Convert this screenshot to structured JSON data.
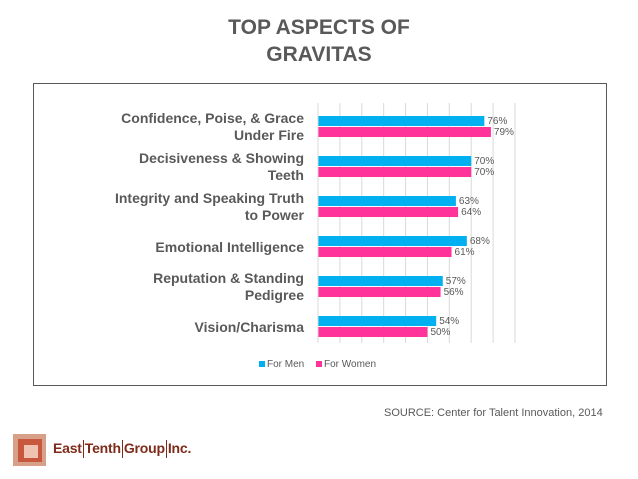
{
  "title_line1": "TOP ASPECTS OF",
  "title_line2": "GRAVITAS",
  "chart_data": {
    "type": "bar",
    "orientation": "horizontal",
    "categories": [
      [
        "Confidence, Poise, & Grace",
        "Under Fire"
      ],
      [
        "Decisiveness & Showing",
        "Teeth"
      ],
      [
        "Integrity and Speaking Truth",
        "to Power"
      ],
      [
        "Emotional Intelligence"
      ],
      [
        "Reputation & Standing",
        "Pedigree"
      ],
      [
        "Vision/Charisma"
      ]
    ],
    "series": [
      {
        "name": "For Men",
        "color": "#00B0F0",
        "values": [
          76,
          70,
          63,
          68,
          57,
          54
        ]
      },
      {
        "name": "For Women",
        "color": "#FF3399",
        "values": [
          79,
          70,
          64,
          61,
          56,
          50
        ]
      }
    ],
    "xlim": [
      0,
      90
    ],
    "value_suffix": "%",
    "grid": true,
    "legend": "bottom"
  },
  "source": "SOURCE: Center for Talent Innovation, 2014",
  "logo": {
    "part1": "East",
    "part2": "Tenth",
    "part3": "Group",
    "part4": "Inc."
  }
}
